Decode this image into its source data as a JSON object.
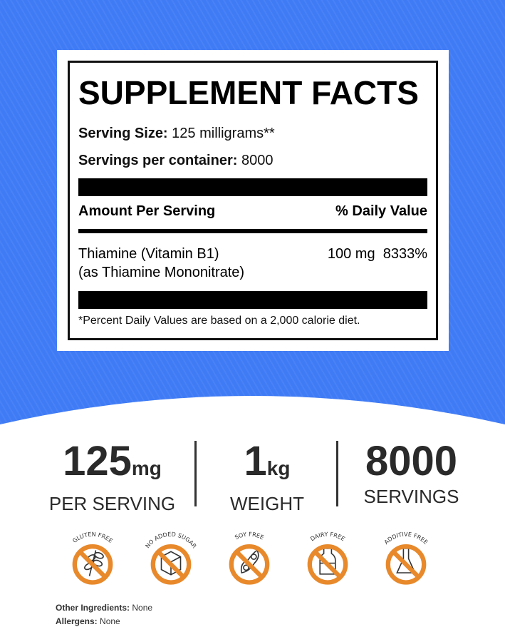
{
  "facts": {
    "title": "SUPPLEMENT FACTS",
    "serving_size_label": "Serving Size:",
    "serving_size": "125 milligrams**",
    "servings_label": "Servings per container:",
    "servings": "8000",
    "amount_header": "Amount Per Serving",
    "dv_header": "% Daily Value",
    "ingredient_line1": "Thiamine (Vitamin B1)",
    "ingredient_line2": "(as Thiamine Mononitrate)",
    "amount": "100 mg",
    "dv": "8333%",
    "footnote": "*Percent Daily Values are based on a 2,000 calorie diet."
  },
  "stats": [
    {
      "value": "125",
      "unit": "mg",
      "label": "PER SERVING"
    },
    {
      "value": "1",
      "unit": "kg",
      "label": "WEIGHT"
    },
    {
      "value": "8000",
      "unit": "",
      "label": "SERVINGS"
    }
  ],
  "badges": [
    {
      "label": "GLUTEN FREE",
      "icon": "wheat-icon"
    },
    {
      "label": "NO ADDED SUGAR",
      "icon": "sugar-cube-icon"
    },
    {
      "label": "SOY FREE",
      "icon": "soybean-icon"
    },
    {
      "label": "DAIRY FREE",
      "icon": "milk-bottle-icon"
    },
    {
      "label": "ADDITIVE FREE",
      "icon": "flask-icon"
    }
  ],
  "info": {
    "other_label": "Other Ingredients:",
    "other": "None",
    "allergens_label": "Allergens:",
    "allergens": "None"
  },
  "colors": {
    "background": "#3f7bf5",
    "badge": "#e8892b"
  }
}
